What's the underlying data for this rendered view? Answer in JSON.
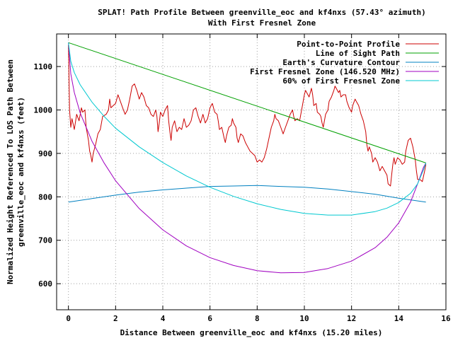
{
  "chart_data": {
    "type": "line",
    "title": "SPLAT! Path Profile Between greenville_eoc and kf4nxs (57.43° azimuth)",
    "subtitle": "With First Fresnel Zone",
    "xlabel": "Distance Between greenville_eoc and kf4nxs (15.20 miles)",
    "ylabel_line1": "Normalized Height Referenced To LOS Path Between",
    "ylabel_line2": "greenville_eoc and kf4nxs (feet)",
    "xlim": [
      -0.5,
      16
    ],
    "ylim": [
      540,
      1175
    ],
    "x_ticks": [
      0,
      2,
      4,
      6,
      8,
      10,
      12,
      14,
      16
    ],
    "y_ticks": [
      600,
      700,
      800,
      900,
      1000,
      1100
    ],
    "grid": true,
    "legend_position": "top-right",
    "series": [
      {
        "name": "Point-to-Point Profile",
        "color": "#cc0000",
        "points": [
          [
            0,
            1150
          ],
          [
            0.05,
            1000
          ],
          [
            0.1,
            960
          ],
          [
            0.15,
            980
          ],
          [
            0.25,
            955
          ],
          [
            0.35,
            990
          ],
          [
            0.45,
            975
          ],
          [
            0.55,
            1005
          ],
          [
            0.6,
            995
          ],
          [
            0.7,
            1000
          ],
          [
            0.75,
            960
          ],
          [
            0.85,
            930
          ],
          [
            0.9,
            905
          ],
          [
            0.95,
            895
          ],
          [
            1.0,
            880
          ],
          [
            1.05,
            900
          ],
          [
            1.15,
            920
          ],
          [
            1.25,
            945
          ],
          [
            1.35,
            955
          ],
          [
            1.45,
            985
          ],
          [
            1.6,
            990
          ],
          [
            1.7,
            1000
          ],
          [
            1.75,
            1025
          ],
          [
            1.8,
            1005
          ],
          [
            1.9,
            1010
          ],
          [
            2.0,
            1015
          ],
          [
            2.1,
            1035
          ],
          [
            2.2,
            1020
          ],
          [
            2.3,
            1005
          ],
          [
            2.4,
            990
          ],
          [
            2.5,
            1000
          ],
          [
            2.6,
            1025
          ],
          [
            2.7,
            1055
          ],
          [
            2.8,
            1060
          ],
          [
            2.9,
            1045
          ],
          [
            3.0,
            1025
          ],
          [
            3.1,
            1040
          ],
          [
            3.2,
            1030
          ],
          [
            3.3,
            1010
          ],
          [
            3.4,
            1005
          ],
          [
            3.5,
            990
          ],
          [
            3.6,
            985
          ],
          [
            3.7,
            1000
          ],
          [
            3.75,
            985
          ],
          [
            3.8,
            950
          ],
          [
            3.85,
            970
          ],
          [
            3.9,
            995
          ],
          [
            4.0,
            985
          ],
          [
            4.1,
            1000
          ],
          [
            4.2,
            1010
          ],
          [
            4.25,
            975
          ],
          [
            4.3,
            950
          ],
          [
            4.35,
            930
          ],
          [
            4.4,
            960
          ],
          [
            4.5,
            975
          ],
          [
            4.6,
            950
          ],
          [
            4.7,
            960
          ],
          [
            4.8,
            955
          ],
          [
            4.9,
            980
          ],
          [
            5.0,
            960
          ],
          [
            5.1,
            965
          ],
          [
            5.2,
            975
          ],
          [
            5.3,
            1000
          ],
          [
            5.4,
            1005
          ],
          [
            5.5,
            985
          ],
          [
            5.6,
            970
          ],
          [
            5.7,
            990
          ],
          [
            5.8,
            970
          ],
          [
            5.9,
            980
          ],
          [
            6.0,
            1005
          ],
          [
            6.05,
            1010
          ],
          [
            6.1,
            1015
          ],
          [
            6.2,
            995
          ],
          [
            6.3,
            990
          ],
          [
            6.35,
            975
          ],
          [
            6.4,
            955
          ],
          [
            6.5,
            960
          ],
          [
            6.6,
            935
          ],
          [
            6.65,
            925
          ],
          [
            6.7,
            940
          ],
          [
            6.8,
            960
          ],
          [
            6.9,
            965
          ],
          [
            6.95,
            980
          ],
          [
            7.0,
            970
          ],
          [
            7.1,
            960
          ],
          [
            7.15,
            935
          ],
          [
            7.2,
            925
          ],
          [
            7.3,
            945
          ],
          [
            7.4,
            940
          ],
          [
            7.5,
            925
          ],
          [
            7.6,
            915
          ],
          [
            7.7,
            905
          ],
          [
            7.8,
            900
          ],
          [
            7.9,
            895
          ],
          [
            8.0,
            880
          ],
          [
            8.1,
            885
          ],
          [
            8.2,
            880
          ],
          [
            8.3,
            890
          ],
          [
            8.4,
            910
          ],
          [
            8.5,
            935
          ],
          [
            8.6,
            960
          ],
          [
            8.7,
            975
          ],
          [
            8.75,
            990
          ],
          [
            8.8,
            980
          ],
          [
            8.9,
            975
          ],
          [
            9.0,
            960
          ],
          [
            9.1,
            945
          ],
          [
            9.2,
            960
          ],
          [
            9.3,
            975
          ],
          [
            9.4,
            990
          ],
          [
            9.5,
            1000
          ],
          [
            9.55,
            985
          ],
          [
            9.6,
            975
          ],
          [
            9.7,
            980
          ],
          [
            9.8,
            975
          ],
          [
            9.9,
            1005
          ],
          [
            10.0,
            1035
          ],
          [
            10.05,
            1045
          ],
          [
            10.1,
            1040
          ],
          [
            10.2,
            1030
          ],
          [
            10.3,
            1050
          ],
          [
            10.35,
            1035
          ],
          [
            10.4,
            1010
          ],
          [
            10.5,
            1015
          ],
          [
            10.55,
            995
          ],
          [
            10.65,
            990
          ],
          [
            10.7,
            985
          ],
          [
            10.75,
            970
          ],
          [
            10.8,
            960
          ],
          [
            10.9,
            990
          ],
          [
            11.0,
            1000
          ],
          [
            11.05,
            1020
          ],
          [
            11.15,
            1030
          ],
          [
            11.25,
            1045
          ],
          [
            11.3,
            1055
          ],
          [
            11.35,
            1050
          ],
          [
            11.45,
            1040
          ],
          [
            11.5,
            1045
          ],
          [
            11.55,
            1030
          ],
          [
            11.65,
            1035
          ],
          [
            11.75,
            1035
          ],
          [
            11.8,
            1020
          ],
          [
            11.9,
            1005
          ],
          [
            12.0,
            995
          ],
          [
            12.05,
            1010
          ],
          [
            12.15,
            1025
          ],
          [
            12.2,
            1020
          ],
          [
            12.3,
            1010
          ],
          [
            12.4,
            990
          ],
          [
            12.5,
            975
          ],
          [
            12.6,
            950
          ],
          [
            12.65,
            920
          ],
          [
            12.7,
            905
          ],
          [
            12.75,
            915
          ],
          [
            12.85,
            900
          ],
          [
            12.9,
            880
          ],
          [
            13.0,
            890
          ],
          [
            13.1,
            880
          ],
          [
            13.2,
            860
          ],
          [
            13.3,
            870
          ],
          [
            13.4,
            860
          ],
          [
            13.5,
            850
          ],
          [
            13.55,
            830
          ],
          [
            13.65,
            825
          ],
          [
            13.7,
            850
          ],
          [
            13.75,
            875
          ],
          [
            13.8,
            890
          ],
          [
            13.85,
            875
          ],
          [
            13.95,
            890
          ],
          [
            14.05,
            885
          ],
          [
            14.15,
            875
          ],
          [
            14.25,
            880
          ],
          [
            14.3,
            905
          ],
          [
            14.4,
            930
          ],
          [
            14.5,
            935
          ],
          [
            14.6,
            915
          ],
          [
            14.7,
            885
          ],
          [
            14.75,
            860
          ],
          [
            14.8,
            840
          ],
          [
            14.9,
            840
          ],
          [
            15.0,
            835
          ],
          [
            15.1,
            860
          ],
          [
            15.15,
            875
          ]
        ]
      },
      {
        "name": "Line of Sight Path",
        "color": "#00a000",
        "points": [
          [
            0,
            1155
          ],
          [
            15.15,
            878
          ]
        ]
      },
      {
        "name": "Earth's Curvature Contour",
        "color": "#0080c0",
        "points": [
          [
            0,
            788
          ],
          [
            1,
            796
          ],
          [
            2,
            804
          ],
          [
            3,
            811
          ],
          [
            4,
            816
          ],
          [
            5,
            820
          ],
          [
            6,
            824
          ],
          [
            7,
            825
          ],
          [
            8,
            826
          ],
          [
            9,
            824
          ],
          [
            10,
            822
          ],
          [
            11,
            818
          ],
          [
            12,
            812
          ],
          [
            13,
            806
          ],
          [
            14,
            797
          ],
          [
            15.15,
            788
          ]
        ]
      },
      {
        "name": "First Fresnel Zone (146.520 MHz)",
        "color": "#a000c0",
        "points": [
          [
            0,
            1155
          ],
          [
            0.1,
            1083
          ],
          [
            0.25,
            1040
          ],
          [
            0.5,
            993
          ],
          [
            1,
            928
          ],
          [
            1.5,
            879
          ],
          [
            2,
            837
          ],
          [
            3,
            773
          ],
          [
            4,
            724
          ],
          [
            5,
            687
          ],
          [
            6,
            660
          ],
          [
            7,
            642
          ],
          [
            8,
            630
          ],
          [
            9,
            625
          ],
          [
            10,
            626
          ],
          [
            11,
            635
          ],
          [
            12,
            652
          ],
          [
            13,
            683
          ],
          [
            13.5,
            707
          ],
          [
            14,
            740
          ],
          [
            14.5,
            788
          ],
          [
            14.8,
            830
          ],
          [
            15.05,
            868
          ],
          [
            15.15,
            878
          ]
        ]
      },
      {
        "name": "60% of First Fresnel Zone",
        "color": "#00c8d0",
        "points": [
          [
            0,
            1155
          ],
          [
            0.1,
            1112
          ],
          [
            0.25,
            1086
          ],
          [
            0.5,
            1058
          ],
          [
            1,
            1018
          ],
          [
            1.5,
            986
          ],
          [
            2,
            958
          ],
          [
            3,
            915
          ],
          [
            4,
            879
          ],
          [
            5,
            848
          ],
          [
            6,
            822
          ],
          [
            7,
            801
          ],
          [
            8,
            784
          ],
          [
            9,
            771
          ],
          [
            10,
            762
          ],
          [
            11,
            758
          ],
          [
            12,
            758
          ],
          [
            13,
            766
          ],
          [
            13.5,
            774
          ],
          [
            14,
            787
          ],
          [
            14.5,
            808
          ],
          [
            14.8,
            830
          ],
          [
            15.05,
            862
          ],
          [
            15.15,
            878
          ]
        ]
      }
    ]
  }
}
